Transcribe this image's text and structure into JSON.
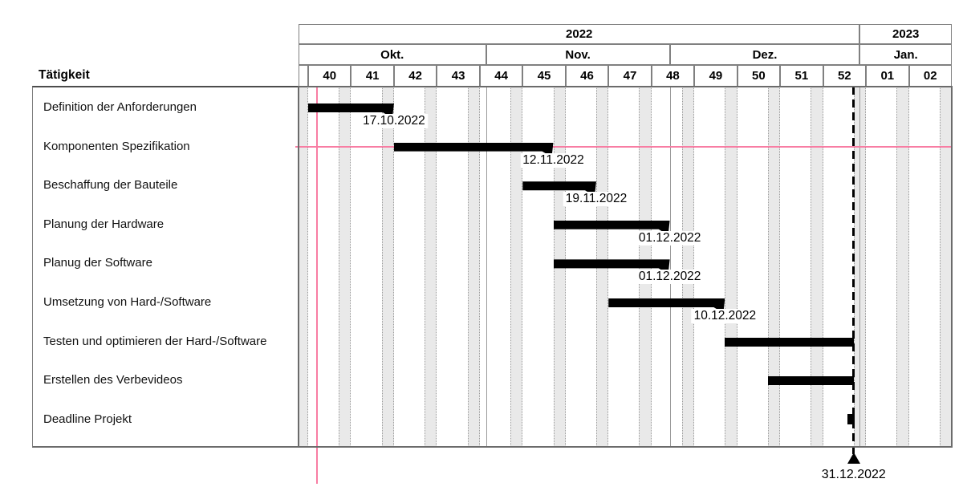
{
  "left_panel": {
    "header": "Tätigkeit"
  },
  "colors": {
    "bar": "#000000",
    "weekend_stripe": "#e9e9e9",
    "grid_dotted": "#9a9a9a",
    "frame": "#6b6b6b",
    "highlight_pink": "#f87da3"
  },
  "chart_data": {
    "type": "bar",
    "subtype": "gantt",
    "title": "",
    "axis_start": "2022-10-01",
    "axis_end": "2023-01-16",
    "years": [
      {
        "label": "2022",
        "start": "2022-10-01",
        "end": "2023-01-01"
      },
      {
        "label": "2023",
        "start": "2023-01-01",
        "end": "2023-01-16"
      }
    ],
    "months": [
      {
        "label": "Okt.",
        "start": "2022-10-01",
        "end": "2022-11-01"
      },
      {
        "label": "Nov.",
        "start": "2022-11-01",
        "end": "2022-12-01"
      },
      {
        "label": "Dez.",
        "start": "2022-12-01",
        "end": "2023-01-01"
      },
      {
        "label": "Jan.",
        "start": "2023-01-01",
        "end": "2023-01-16"
      }
    ],
    "weeks": [
      {
        "label": "40",
        "monday": "2022-10-03"
      },
      {
        "label": "41",
        "monday": "2022-10-10"
      },
      {
        "label": "42",
        "monday": "2022-10-17"
      },
      {
        "label": "43",
        "monday": "2022-10-24"
      },
      {
        "label": "44",
        "monday": "2022-10-31"
      },
      {
        "label": "45",
        "monday": "2022-11-07"
      },
      {
        "label": "46",
        "monday": "2022-11-14"
      },
      {
        "label": "47",
        "monday": "2022-11-21"
      },
      {
        "label": "48",
        "monday": "2022-11-28"
      },
      {
        "label": "49",
        "monday": "2022-12-05"
      },
      {
        "label": "50",
        "monday": "2022-12-12"
      },
      {
        "label": "51",
        "monday": "2022-12-19"
      },
      {
        "label": "52",
        "monday": "2022-12-26"
      },
      {
        "label": "01",
        "monday": "2023-01-02"
      },
      {
        "label": "02",
        "monday": "2023-01-09"
      }
    ],
    "tasks": [
      {
        "name": "Definition der Anforderungen",
        "start": "2022-10-03",
        "end": "2022-10-17",
        "end_label": "17.10.2022",
        "style": "arrow"
      },
      {
        "name": "Komponenten Spezifikation",
        "start": "2022-10-17",
        "end": "2022-11-12",
        "end_label": "12.11.2022",
        "style": "arrow"
      },
      {
        "name": "Beschaffung der Bauteile",
        "start": "2022-11-07",
        "end": "2022-11-19",
        "end_label": "19.11.2022",
        "style": "arrow"
      },
      {
        "name": "Planung der Hardware",
        "start": "2022-11-12",
        "end": "2022-12-01",
        "end_label": "01.12.2022",
        "style": "arrow"
      },
      {
        "name": "Planug der Software",
        "start": "2022-11-12",
        "end": "2022-12-01",
        "end_label": "01.12.2022",
        "style": "arrow"
      },
      {
        "name": "Umsetzung von Hard-/Software",
        "start": "2022-11-21",
        "end": "2022-12-10",
        "end_label": "10.12.2022",
        "style": "arrow"
      },
      {
        "name": "Testen und optimieren der Hard-/Software",
        "start": "2022-12-10",
        "end": "2022-12-31",
        "end_label": "",
        "style": "flat"
      },
      {
        "name": "Erstellen des Verbevideos",
        "start": "2022-12-17",
        "end": "2022-12-31",
        "end_label": "",
        "style": "flat"
      },
      {
        "name": "Deadline Projekt",
        "start": "2022-12-31",
        "end": "2022-12-31",
        "end_label": "",
        "style": "milestone"
      }
    ],
    "deadline_marker": {
      "date": "2022-12-31",
      "label": "31.12.2022"
    },
    "reference_lines": {
      "vertical_date": "2022-10-04",
      "horizontal_task": "Komponenten Spezifikation"
    },
    "legend": "none",
    "grid": "weekly dotted columns, weekend shading"
  }
}
